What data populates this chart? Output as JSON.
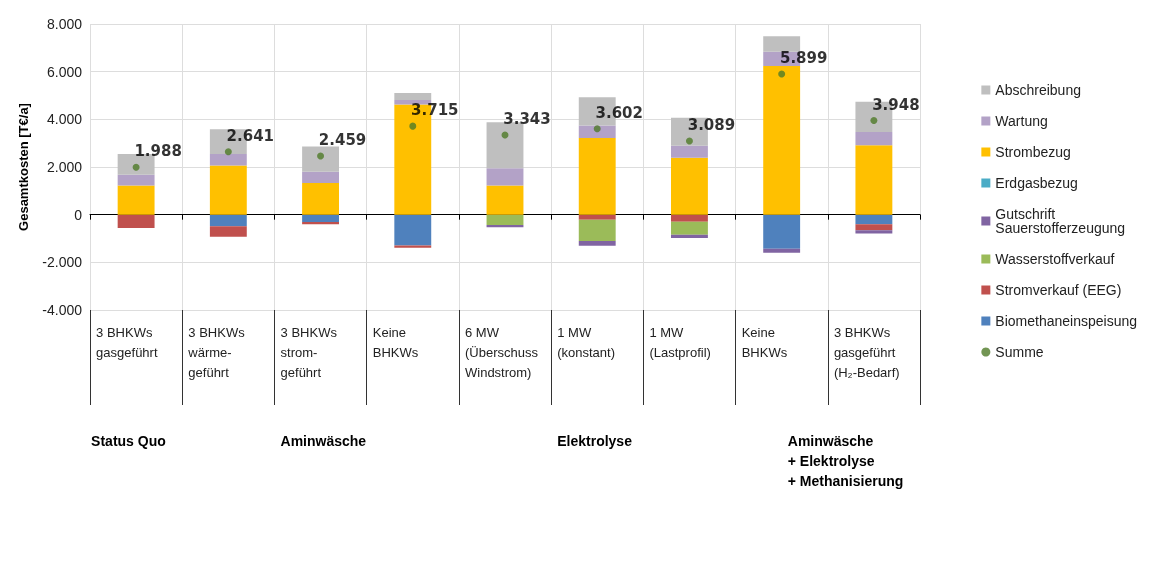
{
  "chart_data": {
    "type": "bar",
    "stacked": true,
    "ylabel": "Gesamtkosten [T€/a]",
    "categories": [
      "3 BHKWs\ngasgeführt",
      "3 BHKWs\nwärme-\ngeführt",
      "3 BHKWs\nstrom-\ngeführt",
      "Keine\nBHKWs",
      "6 MW\n(Überschuss\nWindstrom)",
      "1 MW\n(konstant)",
      "1 MW\n(Lastprofil)",
      "Keine\nBHKWs",
      "3 BHKWs\ngasgeführt\n(H₂-Bedarf)"
    ],
    "series": [
      {
        "name": "Biomethaneinspeisung",
        "color": "#4f81bd",
        "values": [
          0,
          -490,
          -310,
          -1290,
          0,
          0,
          0,
          -1430,
          -405
        ]
      },
      {
        "name": "Stromverkauf (EEG)",
        "color": "#c0504d",
        "values": [
          -560,
          -440,
          -90,
          -100,
          0,
          -210,
          -295,
          0,
          -250
        ]
      },
      {
        "name": "Wasserstoffverkauf",
        "color": "#9bbb59",
        "values": [
          0,
          0,
          0,
          0,
          -430,
          -895,
          -545,
          0,
          0
        ]
      },
      {
        "name": "Gutschrift Sauerstofferzeugung",
        "color": "#8064a2",
        "values": [
          0,
          0,
          0,
          0,
          -100,
          -195,
          -140,
          -165,
          -140
        ]
      },
      {
        "name": "Erdgasbezug",
        "color": "#4bacc6",
        "values": [
          0,
          0,
          0,
          0,
          0,
          0,
          0,
          0,
          0
        ]
      },
      {
        "name": "Strombezug",
        "color": "#ffc000",
        "values": [
          1220,
          2060,
          1330,
          4620,
          1220,
          3220,
          2390,
          6240,
          2910
        ]
      },
      {
        "name": "Wartung",
        "color": "#b3a2c7",
        "values": [
          450,
          490,
          475,
          195,
          730,
          520,
          505,
          600,
          560
        ]
      },
      {
        "name": "Abschreibung",
        "color": "#bfbfbf",
        "values": [
          880,
          1030,
          1060,
          295,
          1930,
          1190,
          1175,
          645,
          1270
        ]
      },
      {
        "name": "Summe",
        "type": "scatter",
        "color": "#4f7a28",
        "values": [
          1988,
          2641,
          2459,
          3715,
          3343,
          3602,
          3089,
          5899,
          3948
        ],
        "value_labels": [
          "1.988",
          "2.641",
          "2.459",
          "3.715",
          "3.343",
          "3.602",
          "3.089",
          "5.899",
          "3.948"
        ]
      }
    ],
    "ylim": [
      -4000,
      8000
    ],
    "yticks": [
      {
        "value": -4000,
        "label": "-4.000"
      },
      {
        "value": -2000,
        "label": "-2.000"
      },
      0,
      {
        "value": 2000,
        "label": "2.000"
      },
      {
        "value": 4000,
        "label": "4.000"
      },
      {
        "value": 6000,
        "label": "6.000"
      },
      {
        "value": 8000,
        "label": "8.000"
      }
    ],
    "grid": true,
    "legend": "right",
    "marker": "circle",
    "annotations": [
      "Status Quo",
      "Aminwäsche",
      "Elektrolyse",
      "Aminwäsche\n+ Elektrolyse\n+ Methanisierung"
    ]
  }
}
